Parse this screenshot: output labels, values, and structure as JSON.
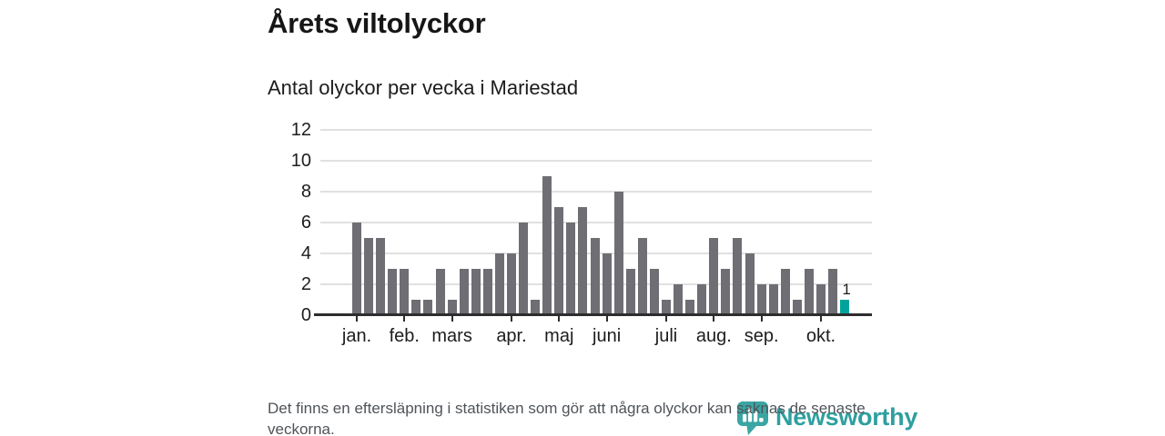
{
  "chart_data": {
    "type": "bar",
    "title": "Årets viltolyckor",
    "subtitle": "Antal olyckor per vecka i Mariestad",
    "x_unit": "week",
    "values": [
      6,
      5,
      5,
      3,
      3,
      1,
      1,
      3,
      1,
      3,
      3,
      3,
      4,
      4,
      6,
      1,
      9,
      7,
      6,
      7,
      5,
      4,
      8,
      3,
      5,
      3,
      1,
      2,
      1,
      2,
      5,
      3,
      5,
      4,
      2,
      2,
      3,
      1,
      3,
      2,
      3,
      1
    ],
    "highlight_last_index": 41,
    "annotation": {
      "text": "1",
      "target_index": 41
    },
    "yticks": [
      0,
      2,
      4,
      6,
      8,
      10,
      12
    ],
    "ylim": [
      0,
      12
    ],
    "xticks": [
      {
        "index": 0,
        "label": "jan."
      },
      {
        "index": 4,
        "label": "feb."
      },
      {
        "index": 8,
        "label": "mars"
      },
      {
        "index": 13,
        "label": "apr."
      },
      {
        "index": 17,
        "label": "maj"
      },
      {
        "index": 21,
        "label": "juni"
      },
      {
        "index": 26,
        "label": "juli"
      },
      {
        "index": 30,
        "label": "aug."
      },
      {
        "index": 34,
        "label": "sep."
      },
      {
        "index": 39,
        "label": "okt."
      }
    ],
    "grid": "horizontal",
    "legend": "none",
    "colors": {
      "bar": "#6e6e74",
      "highlight": "#00a39b",
      "grid": "#e0e0e0",
      "axis": "#2d2d2d",
      "text": "#1d1d1d"
    }
  },
  "footer": {
    "note": "Det finns en eftersläpning i statistiken som gör att några olyckor kan saknas de senaste veckorna."
  },
  "logo": {
    "text": "Newsworthy",
    "text_color": "#2f9fa0",
    "icon_color": "#3aa5a2"
  }
}
